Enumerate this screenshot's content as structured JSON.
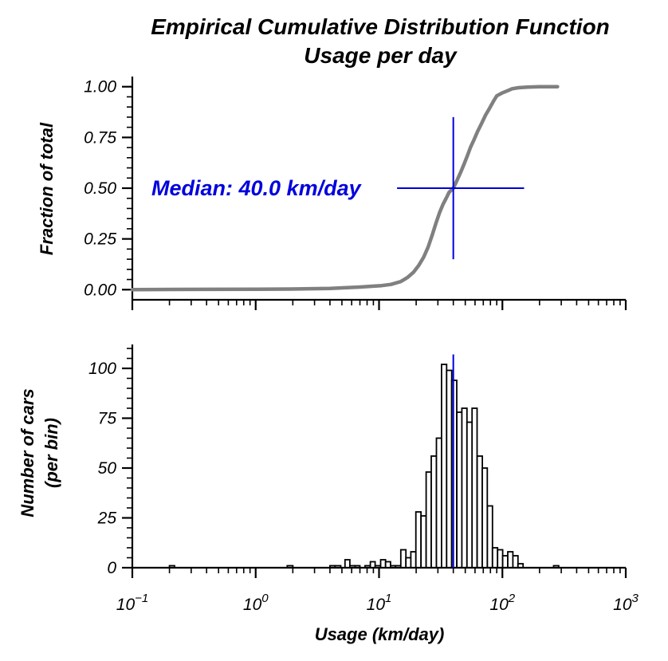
{
  "figure": {
    "title_line1": "Empirical Cumulative Distribution Function",
    "title_line2": "Usage per day",
    "xlabel": "Usage (km/day)",
    "colors": {
      "ecdf": "#808080",
      "median": "#0000dd",
      "bars_edge": "#000000",
      "bars_fill": "#ffffff"
    }
  },
  "chart_data": [
    {
      "type": "line",
      "panel": "top",
      "xscale": "log",
      "xlim": [
        0.1,
        1000
      ],
      "ylim": [
        -0.05,
        1.05
      ],
      "ylabel": "Fraction of total",
      "yticks": [
        0.0,
        0.25,
        0.5,
        0.75,
        1.0
      ],
      "yticklabels": [
        "0.00",
        "0.25",
        "0.50",
        "0.75",
        "1.00"
      ],
      "series": [
        {
          "x": [
            0.1,
            0.21,
            1.0,
            1.9,
            4.0,
            5.5,
            7.0,
            9.0,
            10.5,
            12.5,
            15.0,
            17.0,
            19.0,
            21.0,
            23.0,
            25.0,
            27.0,
            29.0,
            31.0,
            33.0,
            35.0,
            37.0,
            40.0,
            43.0,
            46.0,
            49.0,
            52.0,
            55.0,
            59.0,
            63.0,
            68.0,
            73.0,
            78.0,
            85.0,
            90.0,
            100.0,
            110.0,
            120.0,
            135.0,
            160.0,
            200.0,
            280.0
          ],
          "y": [
            0.0,
            0.001,
            0.002,
            0.003,
            0.006,
            0.01,
            0.013,
            0.017,
            0.02,
            0.026,
            0.04,
            0.06,
            0.085,
            0.12,
            0.16,
            0.21,
            0.27,
            0.33,
            0.38,
            0.42,
            0.45,
            0.48,
            0.5,
            0.54,
            0.58,
            0.62,
            0.66,
            0.7,
            0.74,
            0.78,
            0.82,
            0.86,
            0.89,
            0.93,
            0.955,
            0.97,
            0.98,
            0.99,
            0.995,
            0.998,
            1.0,
            1.0
          ]
        }
      ],
      "median": {
        "x": 40.0,
        "y": 0.5,
        "label": "Median: 40.0 km/day"
      }
    },
    {
      "type": "bar",
      "panel": "bottom",
      "xscale": "log",
      "xlim": [
        0.1,
        1000
      ],
      "ylim": [
        0,
        112
      ],
      "ylabel_line1": "Number of cars",
      "ylabel_line2": "(per bin)",
      "xlabel": "Usage (km/day)",
      "yticks": [
        0,
        25,
        50,
        75,
        100
      ],
      "xticks": [
        {
          "value": 0.1,
          "base": "10",
          "exp": "−1"
        },
        {
          "value": 1,
          "base": "10",
          "exp": "0"
        },
        {
          "value": 10,
          "base": "10",
          "exp": "1"
        },
        {
          "value": 100,
          "base": "10",
          "exp": "2"
        },
        {
          "value": 1000,
          "base": "10",
          "exp": "3"
        }
      ],
      "bins": [
        {
          "x0": 0.2,
          "x1": 0.22,
          "count": 1
        },
        {
          "x0": 1.8,
          "x1": 2.0,
          "count": 1
        },
        {
          "x0": 4.0,
          "x1": 4.4,
          "count": 1
        },
        {
          "x0": 4.4,
          "x1": 4.9,
          "count": 1
        },
        {
          "x0": 5.3,
          "x1": 5.8,
          "count": 4
        },
        {
          "x0": 5.8,
          "x1": 6.4,
          "count": 1
        },
        {
          "x0": 6.4,
          "x1": 7.0,
          "count": 1
        },
        {
          "x0": 7.7,
          "x1": 8.5,
          "count": 1
        },
        {
          "x0": 8.5,
          "x1": 9.3,
          "count": 3
        },
        {
          "x0": 9.3,
          "x1": 10.3,
          "count": 1
        },
        {
          "x0": 10.3,
          "x1": 11.3,
          "count": 4
        },
        {
          "x0": 11.3,
          "x1": 12.4,
          "count": 3
        },
        {
          "x0": 12.4,
          "x1": 13.6,
          "count": 1
        },
        {
          "x0": 13.6,
          "x1": 15.0,
          "count": 1
        },
        {
          "x0": 15.0,
          "x1": 16.5,
          "count": 9
        },
        {
          "x0": 16.5,
          "x1": 18.1,
          "count": 5
        },
        {
          "x0": 18.1,
          "x1": 19.9,
          "count": 8
        },
        {
          "x0": 19.9,
          "x1": 21.9,
          "count": 28
        },
        {
          "x0": 21.9,
          "x1": 24.1,
          "count": 26
        },
        {
          "x0": 24.1,
          "x1": 26.5,
          "count": 48
        },
        {
          "x0": 26.5,
          "x1": 29.2,
          "count": 56
        },
        {
          "x0": 29.2,
          "x1": 32.1,
          "count": 65
        },
        {
          "x0": 32.1,
          "x1": 35.3,
          "count": 102
        },
        {
          "x0": 35.3,
          "x1": 38.8,
          "count": 99
        },
        {
          "x0": 38.8,
          "x1": 42.7,
          "count": 94
        },
        {
          "x0": 42.7,
          "x1": 46.9,
          "count": 78
        },
        {
          "x0": 46.9,
          "x1": 51.6,
          "count": 80
        },
        {
          "x0": 51.6,
          "x1": 56.8,
          "count": 73
        },
        {
          "x0": 56.8,
          "x1": 62.4,
          "count": 80
        },
        {
          "x0": 62.4,
          "x1": 68.7,
          "count": 56
        },
        {
          "x0": 68.7,
          "x1": 75.5,
          "count": 50
        },
        {
          "x0": 75.5,
          "x1": 83.1,
          "count": 31
        },
        {
          "x0": 83.1,
          "x1": 91.4,
          "count": 10
        },
        {
          "x0": 91.4,
          "x1": 100.5,
          "count": 9
        },
        {
          "x0": 100.5,
          "x1": 110.6,
          "count": 6
        },
        {
          "x0": 110.6,
          "x1": 121.6,
          "count": 8
        },
        {
          "x0": 121.6,
          "x1": 133.8,
          "count": 6
        },
        {
          "x0": 133.8,
          "x1": 147.2,
          "count": 2
        },
        {
          "x0": 260.0,
          "x1": 286.0,
          "count": 1
        }
      ],
      "median": {
        "x": 40.0
      }
    }
  ]
}
